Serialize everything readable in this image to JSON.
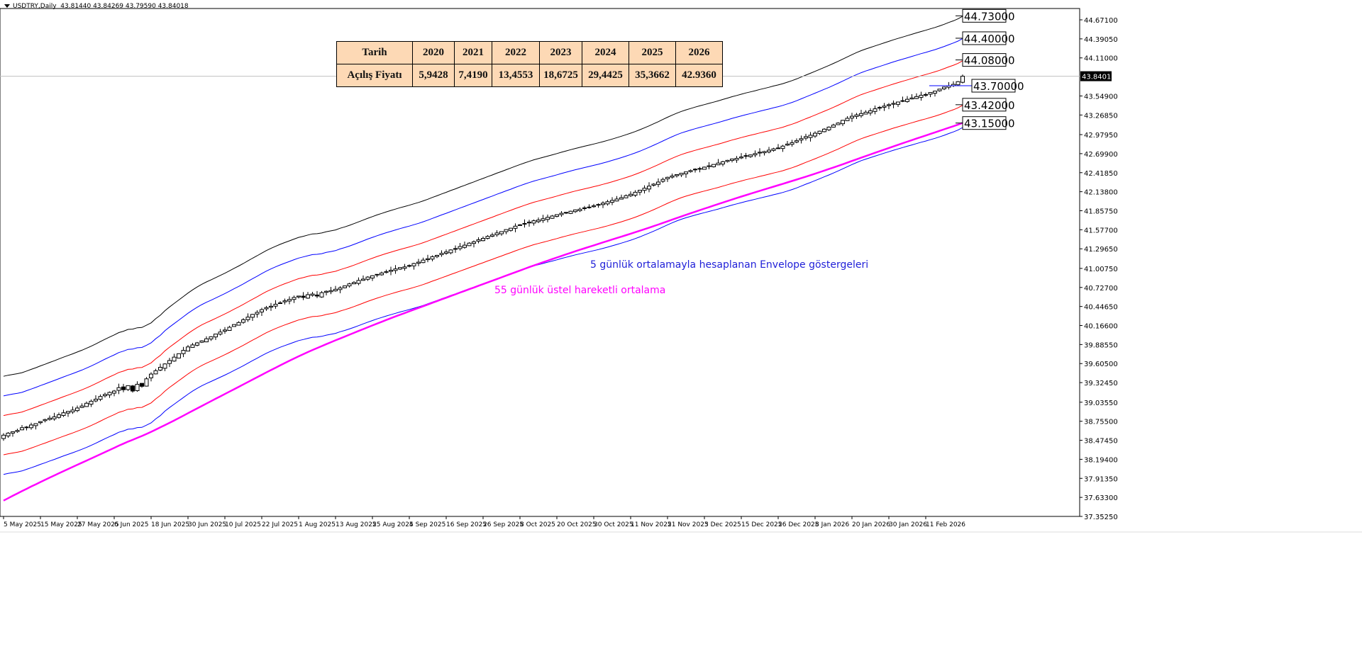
{
  "header": {
    "symbol": "USDTRY,Daily",
    "ohlc": "43.81440 43.84269 43.79590 43.84018"
  },
  "table": {
    "row_header_1": "Tarih",
    "row_header_2": "Açılış Fiyatı",
    "years": [
      "2020",
      "2021",
      "2022",
      "2023",
      "2024",
      "2025",
      "2026"
    ],
    "open_prices": [
      "5,9428",
      "7,4190",
      "13,4553",
      "18,6725",
      "29,4425",
      "35,3662",
      "42.9360"
    ]
  },
  "annotations": {
    "envelope_note": "5 günlük ortalamayla hesaplanan Envelope göstergeleri",
    "ema_note": "55 günlük üstel hareketli ortalama"
  },
  "colors": {
    "envelope_outer": "#000000",
    "envelope_mid": "#0000ff",
    "envelope_inner": "#ff0000",
    "ema": "#ff00ff",
    "table_bg": "#fdd9b5",
    "envelope_note": "#1f1fd8"
  },
  "chart_data": {
    "type": "candlestick",
    "title": "USDTRY,Daily",
    "current_price": "43.84018",
    "ylim": [
      37.3525,
      44.671
    ],
    "y_ticks": [
      "44.67100",
      "44.39050",
      "44.11000",
      "43.54900",
      "43.26850",
      "42.97950",
      "42.69900",
      "42.41850",
      "42.13800",
      "41.85750",
      "41.57700",
      "41.29650",
      "41.00750",
      "40.72700",
      "40.44650",
      "40.16600",
      "39.88550",
      "39.60500",
      "39.32450",
      "39.03550",
      "38.75500",
      "38.47450",
      "38.19400",
      "37.91350",
      "37.63300",
      "37.35250"
    ],
    "x_ticks": [
      "5 May 2025",
      "15 May 2025",
      "27 May 2025",
      "6 Jun 2025",
      "18 Jun 2025",
      "30 Jun 2025",
      "10 Jul 2025",
      "22 Jul 2025",
      "1 Aug 2025",
      "13 Aug 2025",
      "25 Aug 2025",
      "4 Sep 2025",
      "16 Sep 2025",
      "26 Sep 2025",
      "8 Oct 2025",
      "20 Oct 2025",
      "30 Oct 2025",
      "11 Nov 2025",
      "21 Nov 2025",
      "3 Dec 2025",
      "15 Dec 2025",
      "26 Dec 2025",
      "8 Jan 2026",
      "20 Jan 2026",
      "30 Jan 2026",
      "11 Feb 2026"
    ],
    "closes": [
      38.55,
      38.58,
      38.6,
      38.62,
      38.66,
      38.67,
      38.7,
      38.72,
      38.75,
      38.78,
      38.8,
      38.82,
      38.85,
      38.88,
      38.9,
      38.92,
      38.95,
      38.98,
      39.02,
      39.05,
      39.08,
      39.12,
      39.15,
      39.18,
      39.2,
      39.25,
      39.22,
      39.28,
      39.2,
      39.3,
      39.27,
      39.38,
      39.45,
      39.5,
      39.55,
      39.6,
      39.65,
      39.7,
      39.75,
      39.8,
      39.85,
      39.88,
      39.91,
      39.94,
      39.97,
      40.0,
      40.04,
      40.07,
      40.1,
      40.14,
      40.18,
      40.21,
      40.25,
      40.29,
      40.33,
      40.36,
      40.4,
      40.43,
      40.45,
      40.48,
      40.5,
      40.53,
      40.55,
      40.58,
      40.6,
      40.58,
      40.62,
      40.63,
      40.6,
      40.65,
      40.67,
      40.68,
      40.7,
      40.72,
      40.75,
      40.78,
      40.8,
      40.83,
      40.85,
      40.88,
      40.9,
      40.92,
      40.94,
      40.96,
      40.98,
      41.0,
      41.02,
      41.03,
      41.05,
      41.08,
      41.1,
      41.13,
      41.15,
      41.18,
      41.2,
      41.23,
      41.25,
      41.28,
      41.3,
      41.33,
      41.35,
      41.38,
      41.4,
      41.43,
      41.45,
      41.48,
      41.5,
      41.53,
      41.55,
      41.58,
      41.6,
      41.63,
      41.65,
      41.67,
      41.69,
      41.71,
      41.72,
      41.74,
      41.76,
      41.78,
      41.8,
      41.82,
      41.83,
      41.85,
      41.87,
      41.88,
      41.9,
      41.91,
      41.93,
      41.95,
      41.97,
      41.99,
      42.01,
      42.03,
      42.05,
      42.08,
      42.1,
      42.13,
      42.16,
      42.19,
      42.22,
      42.25,
      42.28,
      42.32,
      42.35,
      42.37,
      42.39,
      42.41,
      42.43,
      42.45,
      42.47,
      42.48,
      42.5,
      42.52,
      42.54,
      42.56,
      42.58,
      42.6,
      42.62,
      42.63,
      42.65,
      42.67,
      42.68,
      42.7,
      42.72,
      42.73,
      42.75,
      42.77,
      42.78,
      42.81,
      42.84,
      42.86,
      42.89,
      42.92,
      42.95,
      42.97,
      43.0,
      43.03,
      43.06,
      43.09,
      43.12,
      43.15,
      43.19,
      43.22,
      43.25,
      43.27,
      43.29,
      43.31,
      43.33,
      43.36,
      43.38,
      43.4,
      43.42,
      43.44,
      43.46,
      43.48,
      43.5,
      43.52,
      43.54,
      43.56,
      43.57,
      43.6,
      43.62,
      43.65,
      43.68,
      43.7,
      43.72,
      43.76,
      43.84
    ],
    "envelopes": {
      "ma_period": 5,
      "deviations_percent": [
        2.25,
        1.5,
        0.75,
        -0.75,
        -1.5
      ]
    },
    "ema": {
      "period": 55
    },
    "price_labels": [
      "44.73000",
      "44.40000",
      "44.08000",
      "43.70000",
      "43.42000",
      "43.15000"
    ],
    "grid": false
  }
}
